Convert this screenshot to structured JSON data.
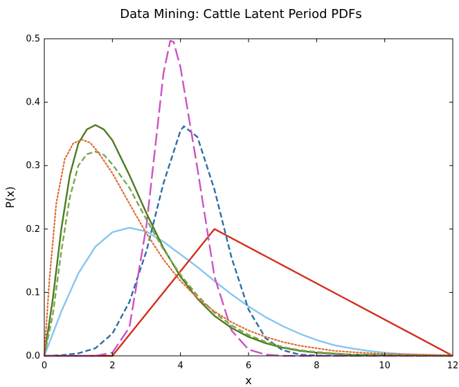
{
  "chart_data": {
    "type": "line",
    "title": "Data Mining: Cattle Latent Period PDFs",
    "xlabel": "x",
    "ylabel": "P(x)",
    "xlim": [
      0,
      12
    ],
    "ylim": [
      0,
      0.5
    ],
    "x_ticks": [
      "0",
      "2",
      "4",
      "6",
      "8",
      "10",
      "12"
    ],
    "y_ticks": [
      "0.0",
      "0.1",
      "0.2",
      "0.3",
      "0.4",
      "0.5"
    ],
    "grid": false,
    "legend": "none",
    "series": [
      {
        "color": "#85c6f0",
        "style": "solid",
        "points": [
          [
            0,
            0
          ],
          [
            0.5,
            0.07
          ],
          [
            1,
            0.13
          ],
          [
            1.5,
            0.172
          ],
          [
            2,
            0.195
          ],
          [
            2.5,
            0.202
          ],
          [
            3,
            0.196
          ],
          [
            3.5,
            0.18
          ],
          [
            4,
            0.16
          ],
          [
            4.5,
            0.14
          ],
          [
            5,
            0.118
          ],
          [
            5.5,
            0.097
          ],
          [
            6,
            0.078
          ],
          [
            6.5,
            0.061
          ],
          [
            7,
            0.047
          ],
          [
            7.5,
            0.035
          ],
          [
            8,
            0.025
          ],
          [
            8.5,
            0.017
          ],
          [
            9,
            0.012
          ],
          [
            9.5,
            0.008
          ],
          [
            10,
            0.005
          ],
          [
            10.5,
            0.003
          ],
          [
            11,
            0.002
          ],
          [
            12,
            0.0005
          ]
        ]
      },
      {
        "color": "#d22f1c",
        "style": "solid",
        "points": [
          [
            0,
            0
          ],
          [
            2,
            0
          ],
          [
            5,
            0.2
          ],
          [
            12,
            0
          ]
        ]
      },
      {
        "color": "#2a6ea5",
        "style": "dashed",
        "points": [
          [
            0,
            0
          ],
          [
            0.5,
            0.001
          ],
          [
            1,
            0.004
          ],
          [
            1.5,
            0.012
          ],
          [
            2,
            0.035
          ],
          [
            2.5,
            0.085
          ],
          [
            3,
            0.165
          ],
          [
            3.5,
            0.272
          ],
          [
            4,
            0.355
          ],
          [
            4.1,
            0.362
          ],
          [
            4.5,
            0.345
          ],
          [
            5,
            0.262
          ],
          [
            5.5,
            0.155
          ],
          [
            6,
            0.073
          ],
          [
            6.5,
            0.028
          ],
          [
            7,
            0.009
          ],
          [
            7.5,
            0.002
          ],
          [
            8,
            0.0005
          ],
          [
            12,
            0
          ]
        ]
      },
      {
        "color": "#cc52c4",
        "style": "longdash",
        "points": [
          [
            0,
            0
          ],
          [
            1.5,
            0
          ],
          [
            2,
            0.005
          ],
          [
            2.5,
            0.045
          ],
          [
            3,
            0.205
          ],
          [
            3.5,
            0.445
          ],
          [
            3.7,
            0.497
          ],
          [
            3.8,
            0.495
          ],
          [
            4,
            0.455
          ],
          [
            4.5,
            0.295
          ],
          [
            5,
            0.125
          ],
          [
            5.5,
            0.04
          ],
          [
            6,
            0.01
          ],
          [
            6.5,
            0.002
          ],
          [
            7,
            0
          ],
          [
            12,
            0
          ]
        ]
      },
      {
        "color": "#4e7a1e",
        "style": "solid",
        "points": [
          [
            0,
            0
          ],
          [
            0.25,
            0.09
          ],
          [
            0.5,
            0.2
          ],
          [
            0.75,
            0.285
          ],
          [
            1,
            0.335
          ],
          [
            1.25,
            0.357
          ],
          [
            1.5,
            0.364
          ],
          [
            1.75,
            0.357
          ],
          [
            2,
            0.34
          ],
          [
            2.5,
            0.285
          ],
          [
            3,
            0.225
          ],
          [
            3.5,
            0.17
          ],
          [
            4,
            0.125
          ],
          [
            4.5,
            0.09
          ],
          [
            5,
            0.063
          ],
          [
            5.5,
            0.044
          ],
          [
            6,
            0.03
          ],
          [
            6.5,
            0.02
          ],
          [
            7,
            0.013
          ],
          [
            7.5,
            0.008
          ],
          [
            8,
            0.005
          ],
          [
            9,
            0.002
          ],
          [
            12,
            0
          ]
        ]
      },
      {
        "color": "#79a84a",
        "style": "dashed",
        "points": [
          [
            0,
            0
          ],
          [
            0.25,
            0.065
          ],
          [
            0.5,
            0.165
          ],
          [
            0.75,
            0.25
          ],
          [
            1,
            0.3
          ],
          [
            1.25,
            0.318
          ],
          [
            1.5,
            0.322
          ],
          [
            1.75,
            0.317
          ],
          [
            2,
            0.302
          ],
          [
            2.5,
            0.265
          ],
          [
            3,
            0.215
          ],
          [
            3.5,
            0.168
          ],
          [
            4,
            0.128
          ],
          [
            4.5,
            0.095
          ],
          [
            5,
            0.068
          ],
          [
            5.5,
            0.048
          ],
          [
            6,
            0.033
          ],
          [
            6.5,
            0.022
          ],
          [
            7,
            0.014
          ],
          [
            7.5,
            0.009
          ],
          [
            8,
            0.006
          ],
          [
            9,
            0.002
          ],
          [
            12,
            0
          ]
        ]
      },
      {
        "color": "#e06a35",
        "style": "dotted",
        "points": [
          [
            0,
            0
          ],
          [
            0.15,
            0.12
          ],
          [
            0.35,
            0.24
          ],
          [
            0.6,
            0.31
          ],
          [
            0.85,
            0.335
          ],
          [
            1.1,
            0.341
          ],
          [
            1.35,
            0.336
          ],
          [
            1.6,
            0.32
          ],
          [
            2,
            0.288
          ],
          [
            2.5,
            0.24
          ],
          [
            3,
            0.193
          ],
          [
            3.5,
            0.152
          ],
          [
            4,
            0.118
          ],
          [
            4.5,
            0.091
          ],
          [
            5,
            0.07
          ],
          [
            5.5,
            0.053
          ],
          [
            6,
            0.04
          ],
          [
            6.5,
            0.03
          ],
          [
            7,
            0.022
          ],
          [
            7.5,
            0.016
          ],
          [
            8,
            0.012
          ],
          [
            8.5,
            0.008
          ],
          [
            9,
            0.006
          ],
          [
            10,
            0.003
          ],
          [
            12,
            0.001
          ]
        ]
      }
    ]
  }
}
